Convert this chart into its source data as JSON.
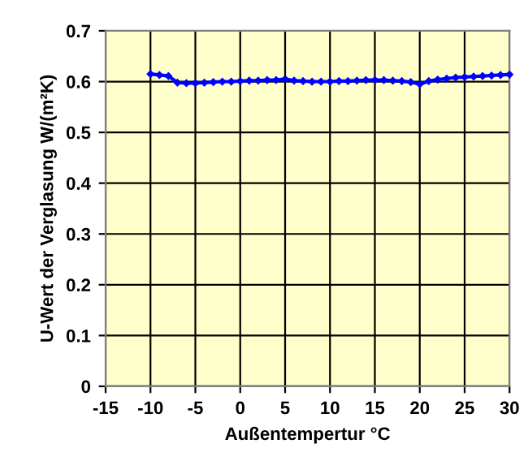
{
  "chart_data": {
    "type": "line",
    "xlabel": "Außentempertur °C",
    "ylabel": "U-Wert der Verglasung W/(m²K)",
    "x": [
      -10,
      -9,
      -8,
      -7,
      -6,
      -5,
      -4,
      -3,
      -2,
      -1,
      0,
      1,
      2,
      3,
      4,
      5,
      6,
      7,
      8,
      9,
      10,
      11,
      12,
      13,
      14,
      15,
      16,
      17,
      18,
      19,
      20,
      21,
      22,
      23,
      24,
      25,
      26,
      27,
      28,
      29,
      30
    ],
    "series": [
      {
        "color": "#0000ff",
        "values": [
          0.615,
          0.613,
          0.611,
          0.598,
          0.597,
          0.597,
          0.598,
          0.599,
          0.6,
          0.6,
          0.601,
          0.602,
          0.602,
          0.603,
          0.603,
          0.605,
          0.602,
          0.601,
          0.6,
          0.6,
          0.6,
          0.601,
          0.601,
          0.602,
          0.603,
          0.603,
          0.603,
          0.602,
          0.601,
          0.599,
          0.595,
          0.601,
          0.604,
          0.606,
          0.608,
          0.609,
          0.61,
          0.611,
          0.612,
          0.613,
          0.614
        ]
      }
    ],
    "xlim": [
      -15,
      30
    ],
    "xticks": [
      -15,
      -10,
      -5,
      0,
      5,
      10,
      15,
      20,
      25,
      30
    ],
    "ylim": [
      0,
      0.7
    ],
    "yticks": [
      0,
      0.1,
      0.2,
      0.3,
      0.4,
      0.5,
      0.6,
      0.7
    ],
    "grid": true,
    "marker": "diamond",
    "line_style": "solid"
  }
}
